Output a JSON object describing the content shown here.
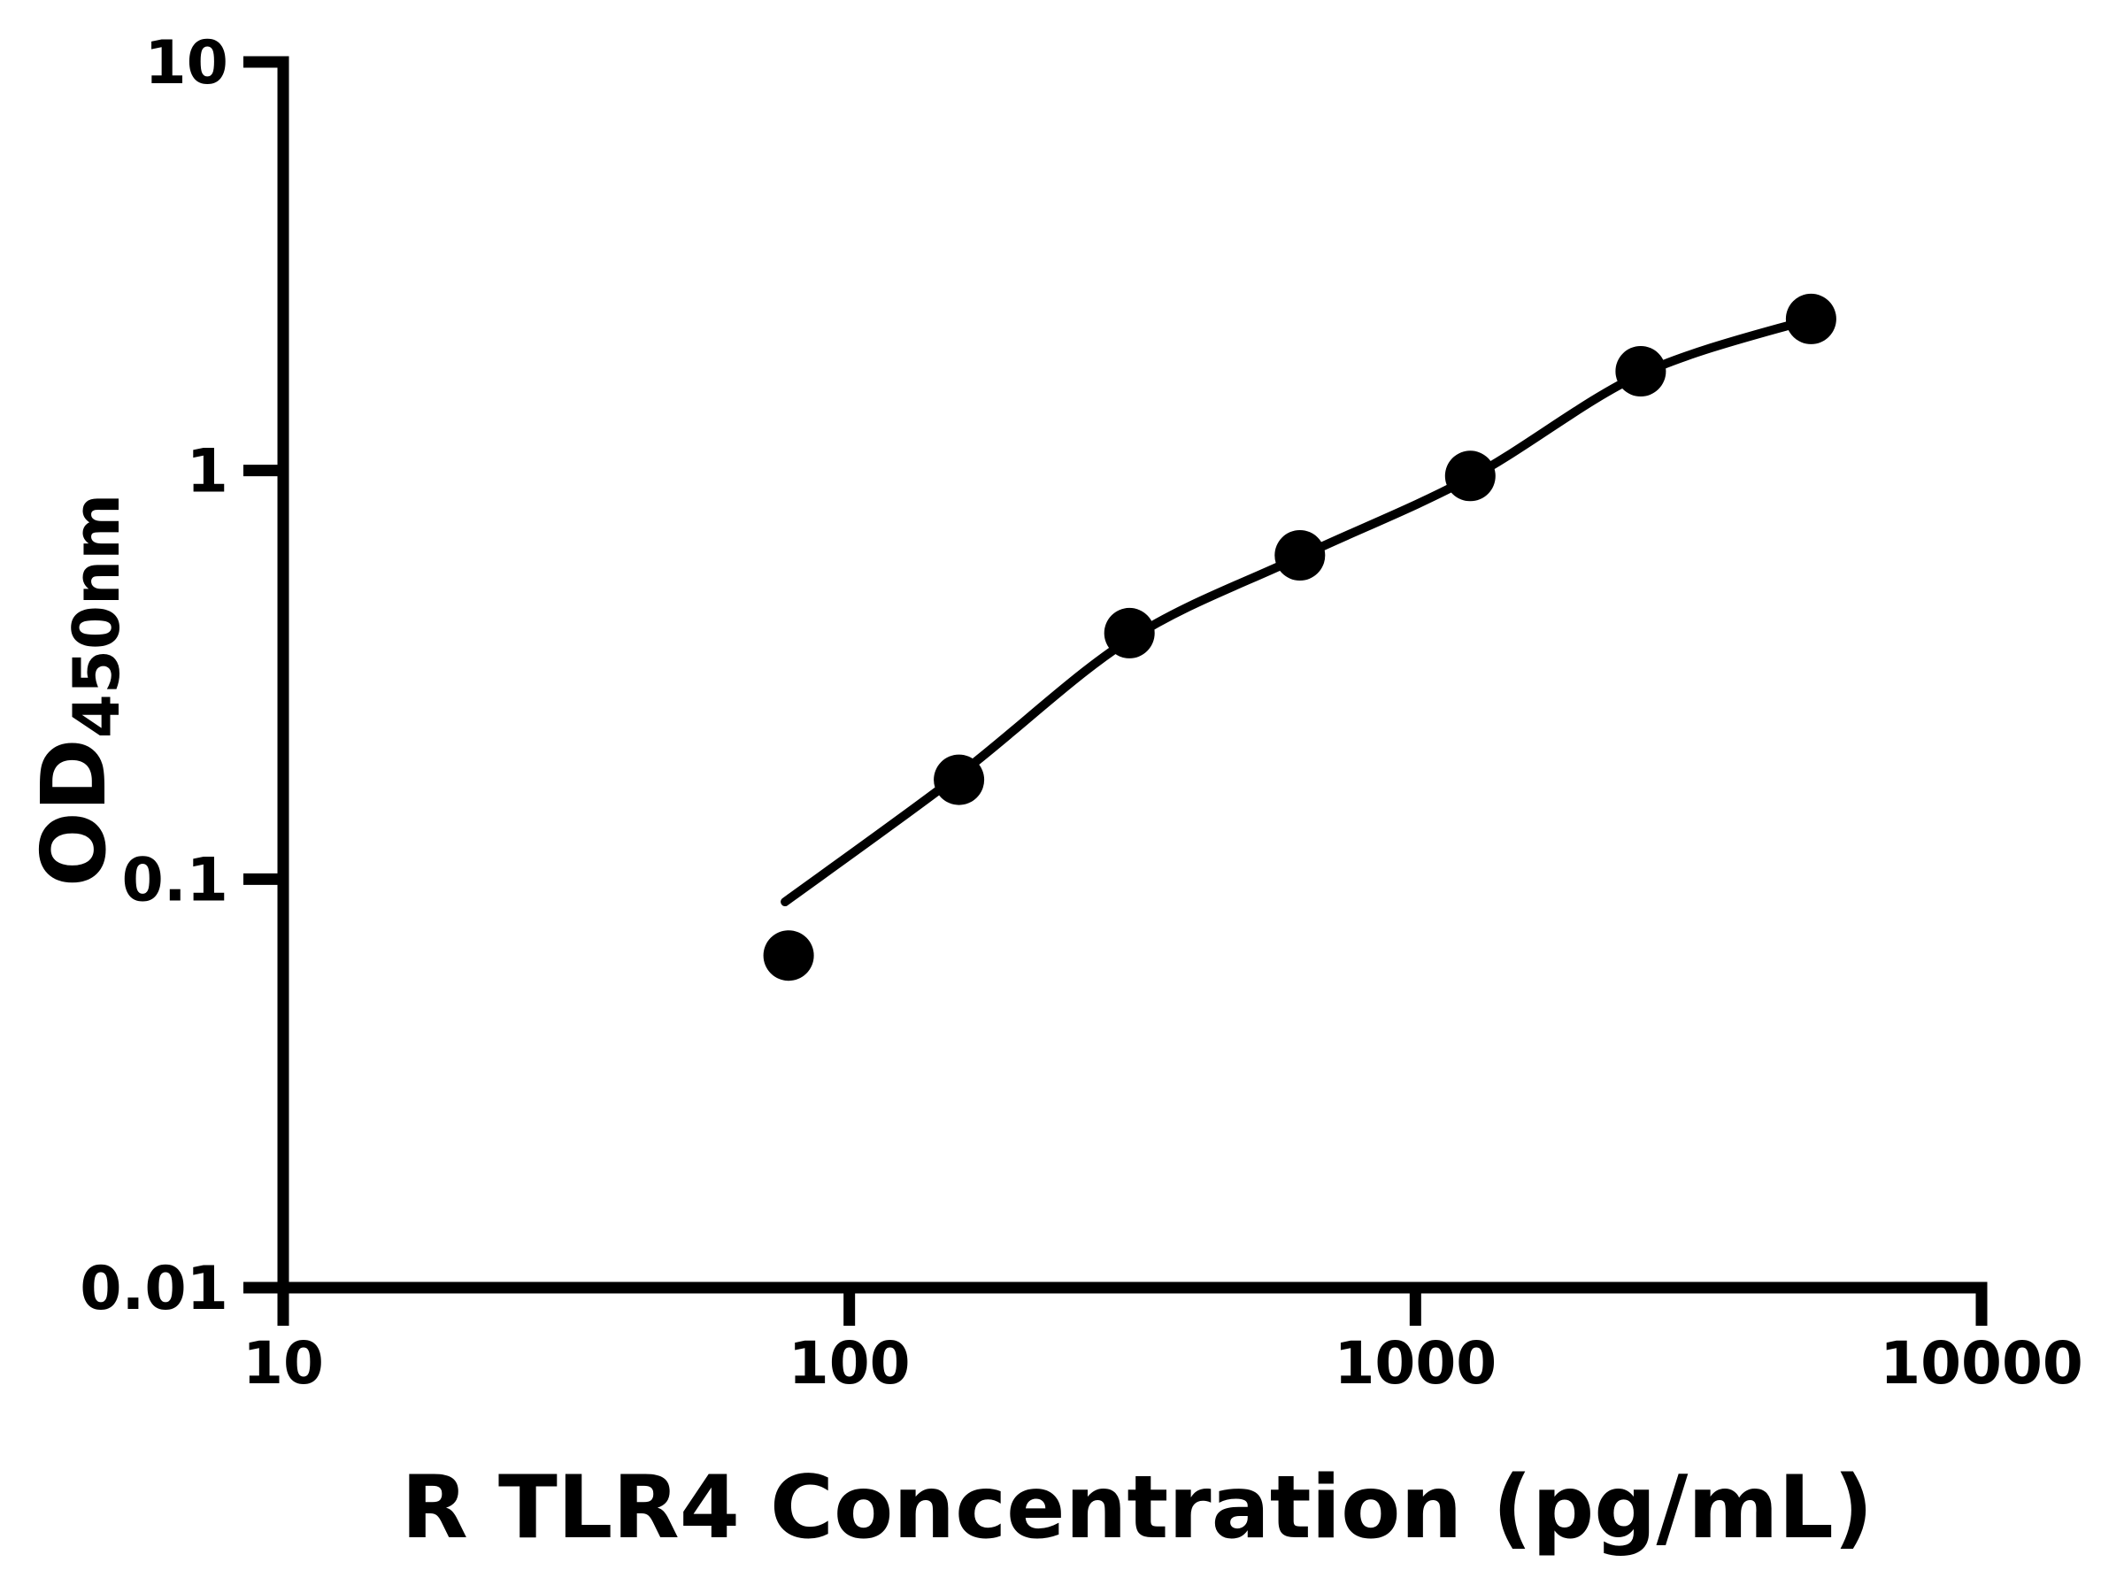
{
  "chart_data": {
    "type": "scatter",
    "title": "",
    "xlabel": "R TLR4 Concentration (pg/mL)",
    "ylabel": "OD450nm",
    "ylabel_main": "OD",
    "ylabel_sub": "450nm",
    "x_scale": "log10",
    "y_scale": "log10",
    "xlim": [
      10,
      10000
    ],
    "ylim": [
      0.01,
      10
    ],
    "grid": false,
    "legend": null,
    "x_ticks": [
      {
        "value": 10,
        "label": "10"
      },
      {
        "value": 100,
        "label": "100"
      },
      {
        "value": 1000,
        "label": "1000"
      },
      {
        "value": 10000,
        "label": "10000"
      }
    ],
    "y_ticks": [
      {
        "value": 10,
        "label": "10"
      },
      {
        "value": 1,
        "label": "1"
      },
      {
        "value": 0.1,
        "label": "0.1"
      },
      {
        "value": 0.01,
        "label": "0.01"
      }
    ],
    "series": [
      {
        "name": "standard-curve-points",
        "marker": "filled-circle",
        "color": "#000000",
        "points": [
          {
            "x": 78.125,
            "y": 0.065
          },
          {
            "x": 156.25,
            "y": 0.175
          },
          {
            "x": 312.5,
            "y": 0.4
          },
          {
            "x": 625,
            "y": 0.62
          },
          {
            "x": 1250,
            "y": 0.97
          },
          {
            "x": 2500,
            "y": 1.75
          },
          {
            "x": 5000,
            "y": 2.35
          }
        ]
      }
    ],
    "fit_curve": {
      "name": "4pl-fit-line",
      "color": "#000000",
      "points": [
        {
          "x": 77,
          "y": 0.088
        },
        {
          "x": 156.25,
          "y": 0.18
        },
        {
          "x": 312.5,
          "y": 0.386
        },
        {
          "x": 625,
          "y": 0.615
        },
        {
          "x": 1250,
          "y": 0.96
        },
        {
          "x": 2500,
          "y": 1.72
        },
        {
          "x": 5000,
          "y": 2.35
        }
      ]
    },
    "colors": {
      "foreground": "#000000",
      "background": "#ffffff"
    }
  }
}
